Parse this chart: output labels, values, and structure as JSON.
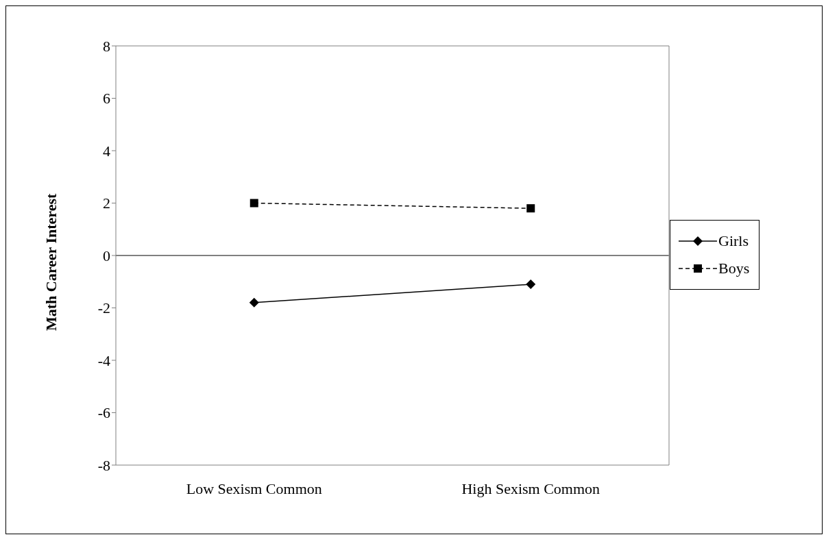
{
  "chart_data": {
    "type": "line",
    "ylabel": "Math Career Interest",
    "categories": [
      "Low Sexism Common",
      "High Sexism Common"
    ],
    "series": [
      {
        "name": "Girls",
        "color": "#000000",
        "values": [
          -1.8,
          -1.1
        ],
        "marker": "diamond",
        "line_style": "solid"
      },
      {
        "name": "Boys",
        "color": "#000000",
        "values": [
          2.0,
          1.8
        ],
        "marker": "square",
        "line_style": "dashed"
      }
    ],
    "ref_lines": [
      {
        "axis": "y",
        "value": 0,
        "color": "#000000"
      }
    ],
    "ylim": [
      -8,
      8
    ],
    "yticks": [
      -8,
      -6,
      -4,
      -2,
      0,
      2,
      4,
      6,
      8
    ],
    "grid": false,
    "legend": "right"
  }
}
